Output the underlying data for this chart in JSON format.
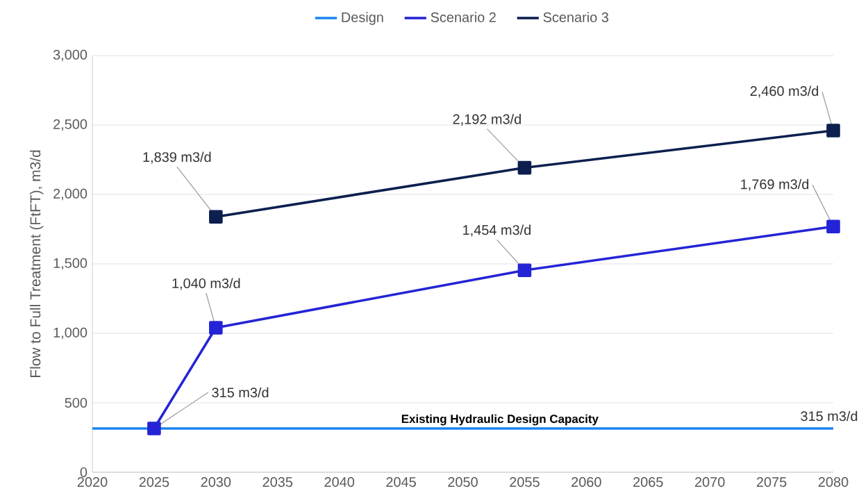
{
  "chart_data": {
    "type": "line",
    "ylabel": "Flow to Full Treatment (FtFT), m3/d",
    "xlim": [
      2020,
      2080
    ],
    "xticks": [
      2020,
      2025,
      2030,
      2035,
      2040,
      2045,
      2050,
      2055,
      2060,
      2065,
      2070,
      2075,
      2080
    ],
    "ylim": [
      0,
      3000
    ],
    "yticks": [
      0,
      500,
      {
        "value": 1000,
        "label": "1,000"
      },
      {
        "value": 1500,
        "label": "1,500"
      },
      {
        "value": 2000,
        "label": "2,000"
      },
      {
        "value": 2500,
        "label": "2,500"
      },
      {
        "value": 3000,
        "label": "3,000"
      }
    ],
    "grid": "y",
    "legend": "top",
    "series": [
      {
        "name": "Design",
        "color": "#1a84ec",
        "marker": "none",
        "x": [
          2020,
          2080
        ],
        "values": [
          315,
          315
        ],
        "value_labels": [
          null,
          "315 m3/d"
        ]
      },
      {
        "name": "Scenario 2",
        "color": "#2424d6",
        "marker": "square",
        "x": [
          2025,
          2030,
          2055,
          2080
        ],
        "values": [
          315,
          1040,
          1454,
          1769
        ],
        "value_labels": [
          "315 m3/d",
          "1,040 m3/d",
          "1,454 m3/d",
          "1,769 m3/d"
        ]
      },
      {
        "name": "Scenario 3",
        "color": "#0c1f4f",
        "marker": "square",
        "x": [
          2030,
          2055,
          2080
        ],
        "values": [
          1839,
          2192,
          2460
        ],
        "value_labels": [
          "1,839 m3/d",
          "2,192 m3/d",
          "2,460 m3/d"
        ]
      }
    ],
    "annotations": [
      {
        "text": "Existing Hydraulic Design Capacity",
        "x": 2053,
        "y": 315
      }
    ]
  }
}
